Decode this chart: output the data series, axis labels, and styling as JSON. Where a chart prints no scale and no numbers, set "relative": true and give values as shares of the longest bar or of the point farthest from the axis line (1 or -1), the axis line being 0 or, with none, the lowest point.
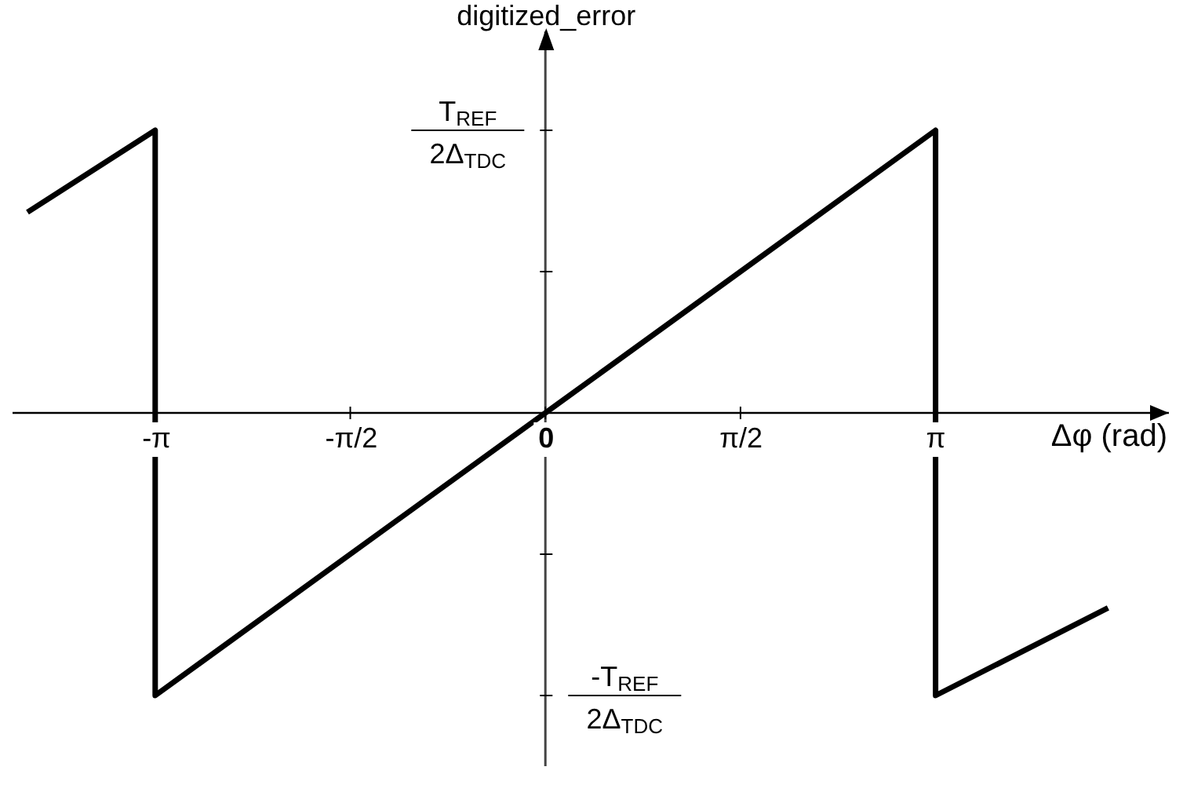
{
  "chart_data": {
    "type": "line",
    "relative": true,
    "ylabel": "digitized_error",
    "xlabel": "Δφ (rad)",
    "xlim": [
      -4.29,
      5.02
    ],
    "xticks": [
      {
        "value": -3.1416,
        "label": "-π"
      },
      {
        "value": -1.5708,
        "label": "-π/2"
      },
      {
        "value": 0,
        "label": "0"
      },
      {
        "value": 1.5708,
        "label": "π/2"
      },
      {
        "value": 3.1416,
        "label": "π"
      }
    ],
    "annotations": [
      "T$_{REF}$",
      "2Δ$_{TDC}$",
      "-T$_{REF}$",
      "2Δ$_{TDC}$"
    ],
    "series": [
      {
        "color": "#000000",
        "x": [
          -4.17,
          -3.1416,
          -3.1416,
          3.1416,
          3.1416,
          4.53
        ],
        "values": [
          0.71,
          1,
          -1,
          1,
          -1,
          -0.69
        ]
      }
    ]
  }
}
